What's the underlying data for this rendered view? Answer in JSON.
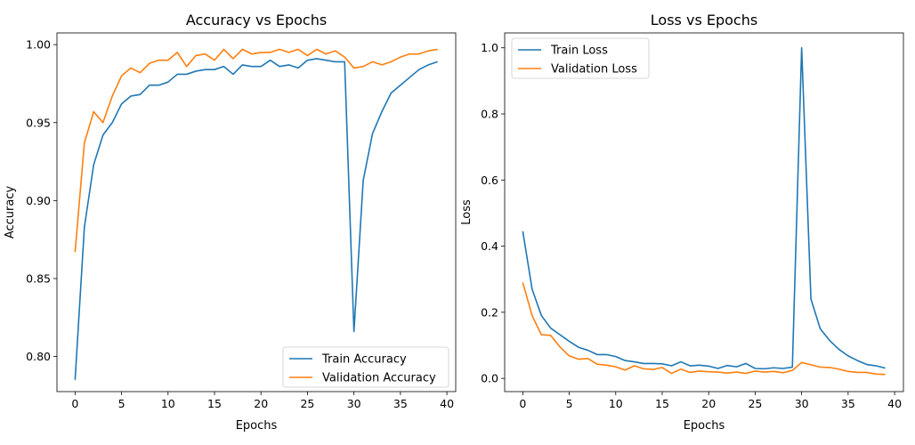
{
  "chart_data": [
    {
      "type": "line",
      "title": "Accuracy vs Epochs",
      "xlabel": "Epochs",
      "ylabel": "Accuracy",
      "xlim": [
        -1.95,
        40.95
      ],
      "ylim": [
        0.7775,
        1.0075
      ],
      "xticks": [
        0,
        5,
        10,
        15,
        20,
        25,
        30,
        35,
        40
      ],
      "yticks": [
        0.8,
        0.85,
        0.9,
        0.95,
        1.0
      ],
      "ytick_labels": [
        "0.80",
        "0.85",
        "0.90",
        "0.95",
        "1.00"
      ],
      "legend_position": "lower-right",
      "x": [
        0,
        1,
        2,
        3,
        4,
        5,
        6,
        7,
        8,
        9,
        10,
        11,
        12,
        13,
        14,
        15,
        16,
        17,
        18,
        19,
        20,
        21,
        22,
        23,
        24,
        25,
        26,
        27,
        28,
        29,
        30,
        31,
        32,
        33,
        34,
        35,
        36,
        37,
        38,
        39
      ],
      "series": [
        {
          "name": "Train Accuracy",
          "color": "#1f77b4",
          "values": [
            0.785,
            0.883,
            0.923,
            0.942,
            0.95,
            0.962,
            0.967,
            0.968,
            0.974,
            0.974,
            0.976,
            0.981,
            0.981,
            0.983,
            0.984,
            0.984,
            0.986,
            0.981,
            0.987,
            0.986,
            0.986,
            0.99,
            0.986,
            0.987,
            0.985,
            0.99,
            0.991,
            0.99,
            0.989,
            0.989,
            0.816,
            0.913,
            0.943,
            0.957,
            0.969,
            0.974,
            0.979,
            0.984,
            0.987,
            0.989
          ]
        },
        {
          "name": "Validation Accuracy",
          "color": "#ff7f0e",
          "values": [
            0.867,
            0.937,
            0.957,
            0.95,
            0.967,
            0.98,
            0.985,
            0.982,
            0.988,
            0.99,
            0.99,
            0.995,
            0.986,
            0.993,
            0.994,
            0.99,
            0.997,
            0.991,
            0.997,
            0.994,
            0.995,
            0.995,
            0.997,
            0.995,
            0.997,
            0.993,
            0.997,
            0.994,
            0.996,
            0.992,
            0.985,
            0.986,
            0.989,
            0.987,
            0.989,
            0.992,
            0.994,
            0.994,
            0.996,
            0.997
          ]
        }
      ]
    },
    {
      "type": "line",
      "title": "Loss vs Epochs",
      "xlabel": "Epochs",
      "ylabel": "Loss",
      "xlim": [
        -1.95,
        40.95
      ],
      "ylim": [
        -0.04,
        1.045
      ],
      "xticks": [
        0,
        5,
        10,
        15,
        20,
        25,
        30,
        35,
        40
      ],
      "yticks": [
        0.0,
        0.2,
        0.4,
        0.6,
        0.8,
        1.0
      ],
      "ytick_labels": [
        "0.0",
        "0.2",
        "0.4",
        "0.6",
        "0.8",
        "1.0"
      ],
      "legend_position": "upper-left",
      "x": [
        0,
        1,
        2,
        3,
        4,
        5,
        6,
        7,
        8,
        9,
        10,
        11,
        12,
        13,
        14,
        15,
        16,
        17,
        18,
        19,
        20,
        21,
        22,
        23,
        24,
        25,
        26,
        27,
        28,
        29,
        30,
        31,
        32,
        33,
        34,
        35,
        36,
        37,
        38,
        39
      ],
      "series": [
        {
          "name": "Train Loss",
          "color": "#1f77b4",
          "values": [
            0.445,
            0.27,
            0.19,
            0.152,
            0.132,
            0.112,
            0.094,
            0.085,
            0.072,
            0.072,
            0.066,
            0.054,
            0.05,
            0.045,
            0.045,
            0.044,
            0.038,
            0.05,
            0.038,
            0.04,
            0.037,
            0.03,
            0.039,
            0.035,
            0.045,
            0.03,
            0.029,
            0.032,
            0.03,
            0.034,
            1.0,
            0.24,
            0.15,
            0.115,
            0.088,
            0.068,
            0.054,
            0.042,
            0.038,
            0.031
          ]
        },
        {
          "name": "Validation Loss",
          "color": "#ff7f0e",
          "values": [
            0.29,
            0.19,
            0.132,
            0.13,
            0.095,
            0.068,
            0.058,
            0.06,
            0.043,
            0.04,
            0.035,
            0.025,
            0.038,
            0.029,
            0.027,
            0.033,
            0.015,
            0.028,
            0.018,
            0.022,
            0.02,
            0.019,
            0.016,
            0.019,
            0.015,
            0.022,
            0.019,
            0.021,
            0.017,
            0.024,
            0.048,
            0.041,
            0.034,
            0.033,
            0.028,
            0.021,
            0.018,
            0.018,
            0.013,
            0.012
          ]
        }
      ]
    }
  ]
}
